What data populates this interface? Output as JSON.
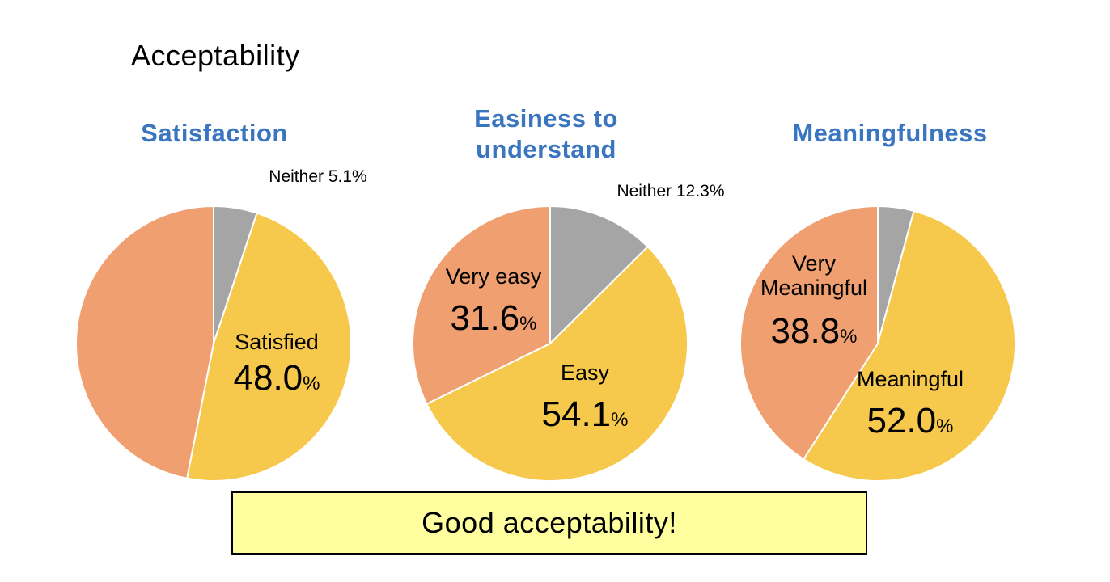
{
  "page": {
    "title": "Acceptability"
  },
  "colors": {
    "positive_strong": "#f0a070",
    "positive": "#f6c84c",
    "neutral": "#a5a5a5",
    "title": "#3a75c0",
    "callout_bg": "#ffffa0"
  },
  "chart_data": [
    {
      "type": "pie",
      "title": "Satisfaction",
      "slices": [
        {
          "label": "Neither",
          "value": 5.1,
          "color": "#a5a5a5",
          "text": "Neither 5.1%"
        },
        {
          "label": "Satisfied",
          "value": 48.0,
          "color": "#f6c84c",
          "label_text": "Satisfied",
          "value_text": "48.0",
          "unit": "%"
        },
        {
          "label": "",
          "value": 46.9,
          "color": "#f0a070"
        }
      ]
    },
    {
      "type": "pie",
      "title": "Easiness to understand",
      "slices": [
        {
          "label": "Neither",
          "value": 12.3,
          "color": "#a5a5a5",
          "text": "Neither 12.3%"
        },
        {
          "label": "Easy",
          "value": 54.1,
          "color": "#f6c84c",
          "label_text": "Easy",
          "value_text": "54.1",
          "unit": "%"
        },
        {
          "label": "Very easy",
          "value": 31.6,
          "color": "#f0a070",
          "label_text": "Very easy",
          "value_text": "31.6",
          "unit": "%"
        }
      ]
    },
    {
      "type": "pie",
      "title": "Meaningfulness",
      "slices": [
        {
          "label": "",
          "value": 4.0,
          "color": "#a5a5a5"
        },
        {
          "label": "Meaningful",
          "value": 52.0,
          "color": "#f6c84c",
          "label_text": "Meaningful",
          "value_text": "52.0",
          "unit": "%"
        },
        {
          "label": "Very Meaningful",
          "value": 38.8,
          "color": "#f0a070",
          "label_text": "Very Meaningful",
          "value_text": "38.8",
          "unit": "%"
        }
      ]
    }
  ],
  "callout": {
    "text": "Good acceptability!"
  }
}
